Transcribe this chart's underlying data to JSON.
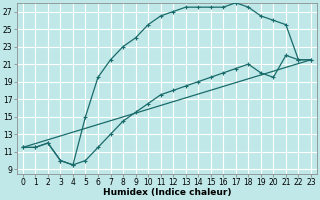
{
  "title": "",
  "xlabel": "Humidex (Indice chaleur)",
  "bg_color": "#c0e8e8",
  "grid_color": "#ffffff",
  "line_color": "#1a6b6b",
  "xlim": [
    -0.5,
    23.5
  ],
  "ylim": [
    8.5,
    28.0
  ],
  "xticks": [
    0,
    1,
    2,
    3,
    4,
    5,
    6,
    7,
    8,
    9,
    10,
    11,
    12,
    13,
    14,
    15,
    16,
    17,
    18,
    19,
    20,
    21,
    22,
    23
  ],
  "yticks": [
    9,
    11,
    13,
    15,
    17,
    19,
    21,
    23,
    25,
    27
  ],
  "line1_x": [
    0,
    1,
    2,
    3,
    4,
    5,
    6,
    7,
    8,
    9,
    10,
    11,
    12,
    13,
    14,
    15,
    16,
    17,
    18,
    19,
    20,
    21,
    22,
    23
  ],
  "line1_y": [
    11.5,
    11.5,
    12.0,
    10.0,
    9.5,
    15.0,
    19.5,
    21.5,
    23.0,
    24.0,
    25.5,
    26.5,
    27.0,
    27.5,
    27.5,
    27.5,
    27.5,
    28.0,
    27.5,
    26.5,
    26.0,
    25.5,
    21.5,
    21.5
  ],
  "line2_x": [
    0,
    1,
    2,
    3,
    4,
    5,
    6,
    7,
    8,
    9,
    10,
    11,
    12,
    13,
    14,
    15,
    16,
    17,
    18,
    19,
    20,
    21,
    22,
    23
  ],
  "line2_y": [
    11.5,
    11.5,
    12.0,
    10.0,
    9.5,
    10.0,
    11.5,
    13.0,
    14.5,
    15.5,
    16.5,
    17.5,
    18.0,
    18.5,
    19.0,
    19.5,
    20.0,
    20.5,
    21.0,
    20.0,
    19.5,
    22.0,
    21.5,
    21.5
  ],
  "line3_x": [
    0,
    23
  ],
  "line3_y": [
    11.5,
    21.5
  ],
  "xlabel_fontsize": 6.5,
  "tick_fontsize": 5.5
}
